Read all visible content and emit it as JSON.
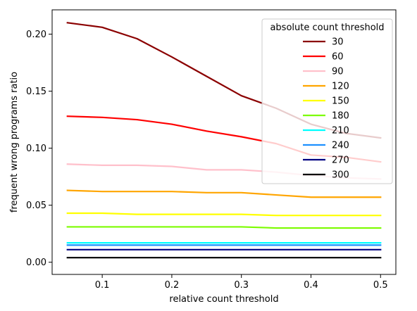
{
  "chart_data": {
    "type": "line",
    "title": "",
    "xlabel": "relative count threshold",
    "ylabel": "frequent wrong programs ratio",
    "xlim": [
      0.028,
      0.522
    ],
    "ylim": [
      -0.0107,
      0.2213
    ],
    "x_ticks": [
      0.1,
      0.2,
      0.3,
      0.4,
      0.5
    ],
    "x_tick_labels": [
      "0.1",
      "0.2",
      "0.3",
      "0.4",
      "0.5"
    ],
    "y_ticks": [
      0.0,
      0.05,
      0.1,
      0.15,
      0.2
    ],
    "y_tick_labels": [
      "0.00",
      "0.05",
      "0.10",
      "0.15",
      "0.20"
    ],
    "grid": false,
    "legend": {
      "title": "absolute count threshold",
      "placement": "top-right"
    },
    "x": [
      0.05,
      0.1,
      0.15,
      0.2,
      0.25,
      0.3,
      0.35,
      0.4,
      0.45,
      0.5
    ],
    "series": [
      {
        "name": "30",
        "color": "#8b0000",
        "values": [
          0.21,
          0.206,
          0.196,
          0.18,
          0.163,
          0.146,
          0.135,
          0.121,
          0.113,
          0.109
        ]
      },
      {
        "name": "60",
        "color": "#ff0000",
        "values": [
          0.128,
          0.127,
          0.125,
          0.121,
          0.115,
          0.11,
          0.104,
          0.094,
          0.092,
          0.088
        ]
      },
      {
        "name": "90",
        "color": "#ffc0cb",
        "values": [
          0.086,
          0.085,
          0.085,
          0.084,
          0.081,
          0.081,
          0.079,
          0.076,
          0.074,
          0.073
        ]
      },
      {
        "name": "120",
        "color": "#ffa500",
        "values": [
          0.063,
          0.062,
          0.062,
          0.062,
          0.061,
          0.061,
          0.059,
          0.057,
          0.057,
          0.057
        ]
      },
      {
        "name": "150",
        "color": "#ffff00",
        "values": [
          0.043,
          0.043,
          0.042,
          0.042,
          0.042,
          0.042,
          0.041,
          0.041,
          0.041,
          0.041
        ]
      },
      {
        "name": "180",
        "color": "#7cfc00",
        "values": [
          0.031,
          0.031,
          0.031,
          0.031,
          0.031,
          0.031,
          0.03,
          0.03,
          0.03,
          0.03
        ]
      },
      {
        "name": "210",
        "color": "#00ffff",
        "values": [
          0.017,
          0.017,
          0.017,
          0.017,
          0.017,
          0.017,
          0.017,
          0.017,
          0.017,
          0.017
        ]
      },
      {
        "name": "240",
        "color": "#1e90ff",
        "values": [
          0.015,
          0.015,
          0.015,
          0.015,
          0.015,
          0.015,
          0.015,
          0.015,
          0.015,
          0.015
        ]
      },
      {
        "name": "270",
        "color": "#000080",
        "values": [
          0.011,
          0.011,
          0.011,
          0.011,
          0.011,
          0.011,
          0.011,
          0.011,
          0.011,
          0.011
        ]
      },
      {
        "name": "300",
        "color": "#000000",
        "values": [
          0.004,
          0.004,
          0.004,
          0.004,
          0.004,
          0.004,
          0.004,
          0.004,
          0.004,
          0.004
        ]
      }
    ]
  }
}
